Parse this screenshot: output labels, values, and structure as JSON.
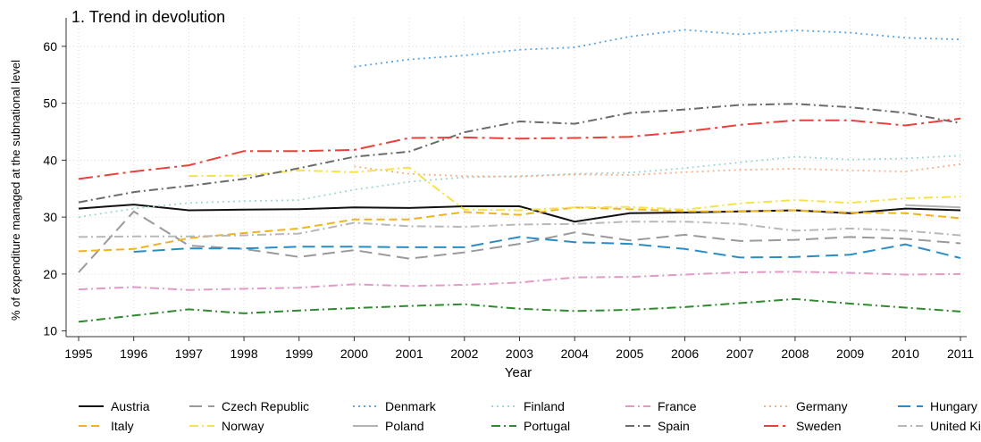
{
  "chart_data": {
    "type": "line",
    "title": "1. Trend in devolution",
    "xlabel": "Year",
    "ylabel": "% of expenditure managed at the subnational level",
    "x": [
      1995,
      1996,
      1997,
      1998,
      1999,
      2000,
      2001,
      2002,
      2003,
      2004,
      2005,
      2006,
      2007,
      2008,
      2009,
      2010,
      2011
    ],
    "xlim": [
      1995,
      2011
    ],
    "ylim": [
      9,
      65
    ],
    "yticks": [
      10,
      20,
      30,
      40,
      50,
      60
    ],
    "grid": true,
    "legend_position": "bottom",
    "series": [
      {
        "name": "Austria",
        "color": "#111111",
        "dash": "solid",
        "values": [
          31.5,
          32.2,
          31.2,
          31.3,
          31.4,
          31.7,
          31.6,
          31.9,
          31.9,
          29.2,
          30.7,
          30.8,
          31.0,
          31.2,
          30.7,
          31.5,
          31.2
        ]
      },
      {
        "name": "Czech Republic",
        "color": "#9a9a9a",
        "dash": "longdash",
        "values": [
          20.3,
          31.0,
          25.0,
          24.4,
          23.0,
          24.2,
          22.7,
          23.8,
          25.3,
          27.3,
          25.9,
          26.9,
          25.8,
          26.0,
          26.5,
          26.2,
          25.4
        ]
      },
      {
        "name": "Denmark",
        "color": "#5aa6e6",
        "dash": "dot",
        "values": [
          null,
          null,
          null,
          null,
          null,
          56.4,
          57.7,
          58.4,
          59.4,
          59.8,
          61.7,
          62.9,
          62.1,
          62.8,
          62.4,
          61.5,
          61.2
        ]
      },
      {
        "name": "Finland",
        "color": "#9fd8d4",
        "dash": "dot",
        "values": [
          30.0,
          31.5,
          32.5,
          32.8,
          33.0,
          34.8,
          36.2,
          37.0,
          37.2,
          37.6,
          37.8,
          38.6,
          39.6,
          40.6,
          40.1,
          40.3,
          40.8
        ]
      },
      {
        "name": "France",
        "color": "#e29ac6",
        "dash": "dashdot",
        "values": [
          17.3,
          17.7,
          17.2,
          17.4,
          17.6,
          18.2,
          17.9,
          18.1,
          18.5,
          19.4,
          19.5,
          19.9,
          20.3,
          20.4,
          20.2,
          19.9,
          20.0
        ]
      },
      {
        "name": "Germany",
        "color": "#f2b28a",
        "dash": "dot",
        "values": [
          null,
          null,
          null,
          null,
          null,
          38.9,
          37.6,
          37.2,
          37.1,
          37.5,
          37.4,
          37.9,
          38.3,
          38.5,
          38.2,
          38.0,
          39.3
        ]
      },
      {
        "name": "Hungary",
        "color": "#2b8cc4",
        "dash": "longdash",
        "values": [
          null,
          23.9,
          24.5,
          24.5,
          24.8,
          24.8,
          24.7,
          24.7,
          26.5,
          25.6,
          25.3,
          24.4,
          22.9,
          23.0,
          23.4,
          25.2,
          22.8
        ]
      },
      {
        "name": "Italy",
        "color": "#f0b323",
        "dash": "dash",
        "values": [
          24.0,
          24.4,
          26.3,
          27.2,
          28.0,
          29.6,
          29.6,
          30.9,
          30.4,
          31.7,
          31.4,
          31.0,
          31.0,
          31.2,
          30.8,
          30.7,
          29.8
        ]
      },
      {
        "name": "Norway",
        "color": "#f6e24a",
        "dash": "dashdot",
        "values": [
          null,
          null,
          37.2,
          37.3,
          38.2,
          37.9,
          38.7,
          31.3,
          31.2,
          31.7,
          31.8,
          31.3,
          32.4,
          33.0,
          32.5,
          33.3,
          33.6
        ]
      },
      {
        "name": "Poland",
        "color": "#b3b3b3",
        "dash": "solid",
        "values": [
          null,
          null,
          null,
          null,
          null,
          null,
          null,
          null,
          null,
          null,
          null,
          null,
          null,
          null,
          null,
          32.1,
          31.7
        ]
      },
      {
        "name": "Portugal",
        "color": "#2e8b2e",
        "dash": "dashdot",
        "values": [
          11.6,
          12.7,
          13.8,
          13.1,
          13.6,
          14.0,
          14.4,
          14.7,
          13.9,
          13.5,
          13.7,
          14.2,
          14.9,
          15.6,
          14.8,
          14.1,
          13.4
        ]
      },
      {
        "name": "Spain",
        "color": "#6b6b6b",
        "dash": "dashdot",
        "values": [
          32.6,
          34.4,
          35.5,
          36.7,
          38.6,
          40.6,
          41.5,
          44.9,
          46.8,
          46.4,
          48.3,
          48.9,
          49.7,
          49.9,
          49.3,
          48.3,
          46.5
        ]
      },
      {
        "name": "Sweden",
        "color": "#e8413c",
        "dash": "longdashdot",
        "values": [
          36.7,
          38.0,
          39.1,
          41.6,
          41.6,
          41.8,
          43.9,
          44.0,
          43.8,
          43.9,
          44.1,
          45.0,
          46.2,
          47.0,
          47.0,
          46.1,
          47.3
        ]
      },
      {
        "name": "United Kingdom",
        "color": "#b8b8b8",
        "dash": "dashdot",
        "values": [
          26.5,
          26.6,
          26.6,
          26.8,
          27.1,
          29.0,
          28.4,
          28.3,
          28.7,
          28.8,
          29.2,
          29.2,
          28.8,
          27.6,
          28.0,
          27.6,
          26.8
        ]
      }
    ]
  }
}
